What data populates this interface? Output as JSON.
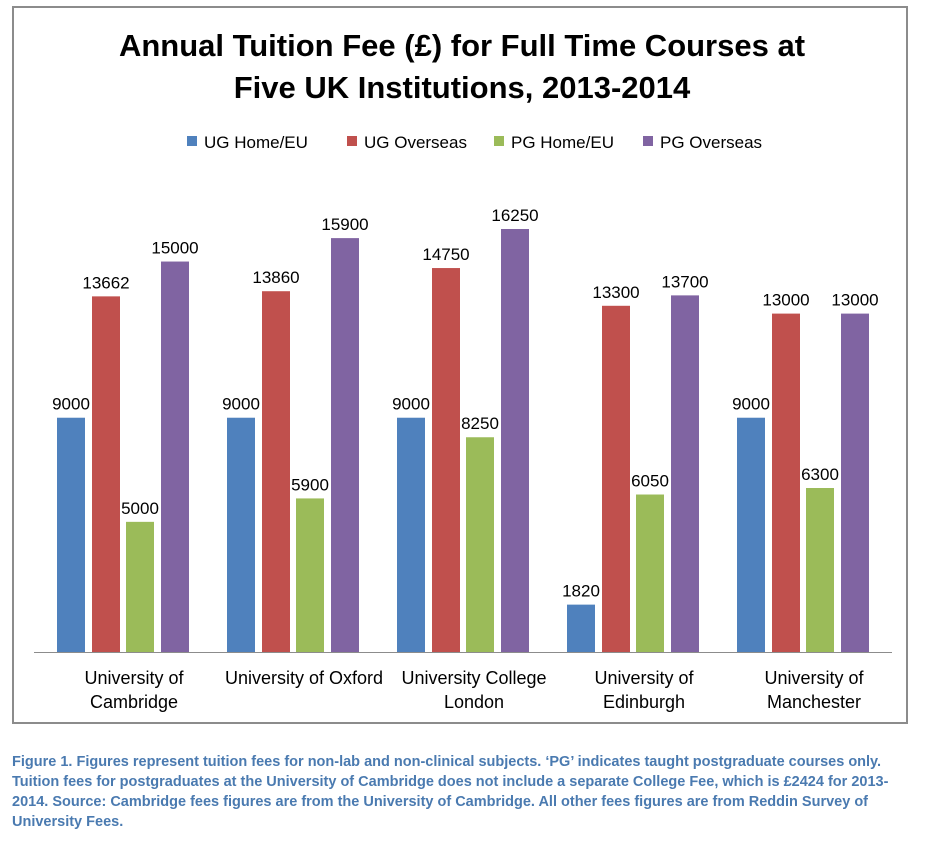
{
  "chart_data": {
    "type": "bar",
    "title_lines": [
      "Annual Tuition Fee (£) for Full Time Courses at",
      "Five UK Institutions, 2013-2014"
    ],
    "categories": [
      [
        "University of",
        "Cambridge"
      ],
      [
        "University of Oxford"
      ],
      [
        "University College",
        "London"
      ],
      [
        "University of",
        "Edinburgh"
      ],
      [
        "University of",
        "Manchester"
      ]
    ],
    "series": [
      {
        "name": "UG Home/EU",
        "color": "#4f81bd",
        "values": [
          9000,
          9000,
          9000,
          1820,
          9000
        ]
      },
      {
        "name": "UG Overseas",
        "color": "#c0504d",
        "values": [
          13662,
          13860,
          14750,
          13300,
          13000
        ]
      },
      {
        "name": "PG Home/EU",
        "color": "#9bbb59",
        "values": [
          5000,
          5900,
          8250,
          6050,
          6300
        ]
      },
      {
        "name": "PG Overseas",
        "color": "#8064a2",
        "values": [
          15000,
          15900,
          16250,
          13700,
          13000
        ]
      }
    ],
    "ylim": [
      0,
      16250
    ],
    "grid": false,
    "legend": "top"
  },
  "caption": "Figure 1. Figures represent tuition fees for non-lab and non-clinical subjects. ‘PG’ indicates taught postgraduate courses only. Tuition fees for postgraduates at the University of Cambridge does not include a separate College Fee, which is £2424 for 2013-2014. Source: Cambridge fees figures are from the University of Cambridge. All other fees figures are from Reddin Survey of University Fees."
}
